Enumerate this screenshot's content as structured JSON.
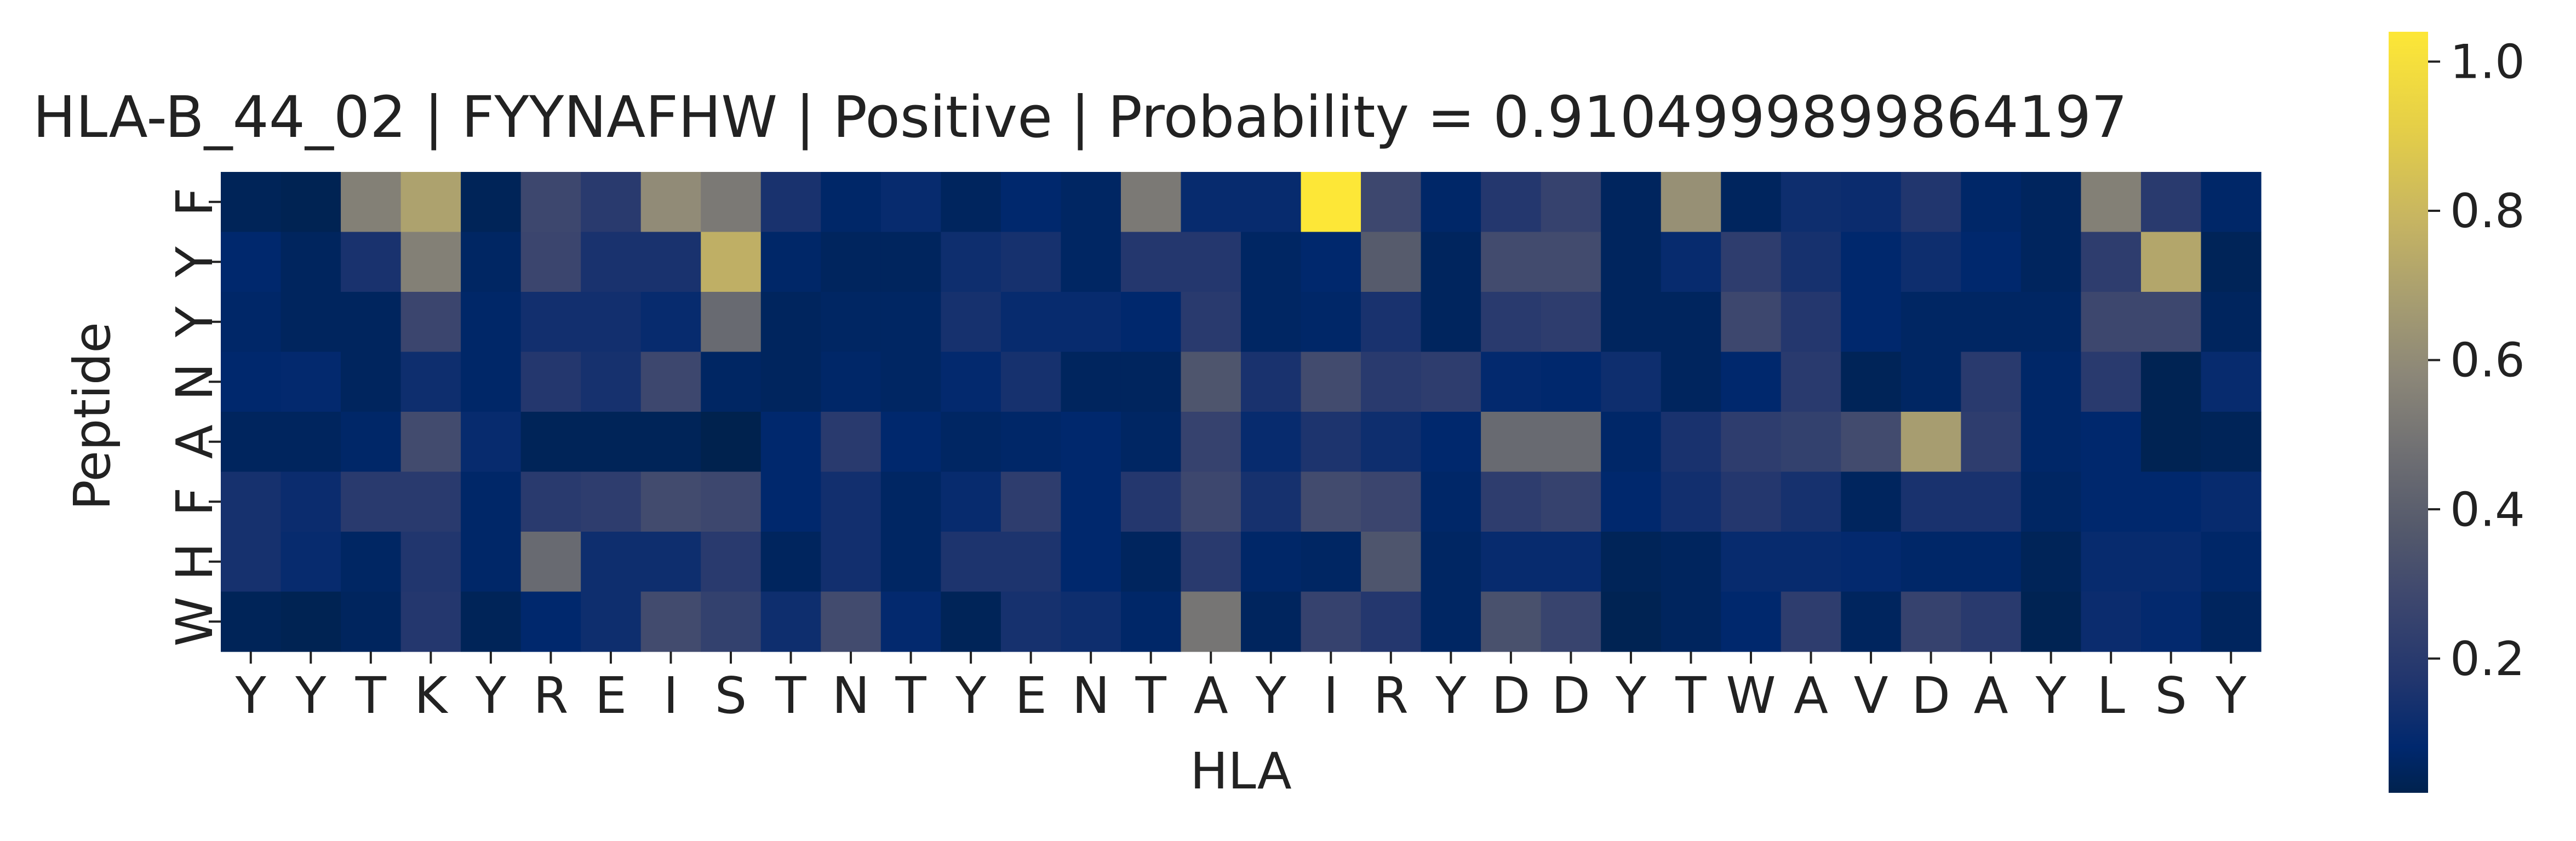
{
  "chart_data": {
    "type": "heatmap",
    "title": "HLA-B_44_02 | FYYNAFHW | Positive | Probability = 0.9104999899864197",
    "xlabel": "HLA",
    "ylabel": "Peptide",
    "x_categories": [
      "Y",
      "Y",
      "T",
      "K",
      "Y",
      "R",
      "E",
      "I",
      "S",
      "T",
      "N",
      "T",
      "Y",
      "E",
      "N",
      "T",
      "A",
      "Y",
      "I",
      "R",
      "Y",
      "D",
      "D",
      "Y",
      "T",
      "W",
      "A",
      "V",
      "D",
      "A",
      "Y",
      "L",
      "S",
      "Y"
    ],
    "y_categories": [
      "F",
      "Y",
      "Y",
      "N",
      "A",
      "F",
      "H",
      "W"
    ],
    "colormap": "cividis",
    "colorbar": {
      "ticks": [
        0.2,
        0.4,
        0.6,
        0.8,
        1.0
      ],
      "tick_labels": [
        "0.2",
        "0.4",
        "0.6",
        "0.8",
        "1.0"
      ],
      "vmin": 0.02,
      "vmax": 1.04
    },
    "grid": false,
    "values": [
      [
        0.04,
        0.03,
        0.55,
        0.7,
        0.04,
        0.28,
        0.2,
        0.6,
        0.52,
        0.15,
        0.07,
        0.1,
        0.05,
        0.08,
        0.06,
        0.52,
        0.1,
        0.1,
        1.04,
        0.28,
        0.07,
        0.18,
        0.25,
        0.05,
        0.62,
        0.05,
        0.12,
        0.11,
        0.17,
        0.07,
        0.05,
        0.55,
        0.2,
        0.07
      ],
      [
        0.08,
        0.05,
        0.15,
        0.55,
        0.06,
        0.27,
        0.15,
        0.15,
        0.76,
        0.07,
        0.05,
        0.05,
        0.12,
        0.14,
        0.06,
        0.18,
        0.18,
        0.06,
        0.08,
        0.38,
        0.05,
        0.3,
        0.3,
        0.05,
        0.1,
        0.22,
        0.14,
        0.08,
        0.12,
        0.08,
        0.05,
        0.22,
        0.72,
        0.04
      ],
      [
        0.07,
        0.05,
        0.05,
        0.27,
        0.07,
        0.13,
        0.13,
        0.1,
        0.45,
        0.05,
        0.06,
        0.06,
        0.14,
        0.1,
        0.1,
        0.08,
        0.2,
        0.06,
        0.07,
        0.15,
        0.05,
        0.2,
        0.22,
        0.05,
        0.05,
        0.28,
        0.18,
        0.08,
        0.06,
        0.06,
        0.06,
        0.28,
        0.28,
        0.05
      ],
      [
        0.08,
        0.09,
        0.05,
        0.12,
        0.07,
        0.18,
        0.14,
        0.28,
        0.06,
        0.05,
        0.07,
        0.06,
        0.09,
        0.14,
        0.05,
        0.05,
        0.35,
        0.15,
        0.3,
        0.2,
        0.22,
        0.09,
        0.08,
        0.12,
        0.05,
        0.08,
        0.2,
        0.04,
        0.06,
        0.2,
        0.07,
        0.2,
        0.03,
        0.1
      ],
      [
        0.05,
        0.05,
        0.07,
        0.3,
        0.1,
        0.04,
        0.04,
        0.04,
        0.02,
        0.08,
        0.2,
        0.08,
        0.06,
        0.07,
        0.08,
        0.06,
        0.25,
        0.1,
        0.16,
        0.12,
        0.08,
        0.45,
        0.45,
        0.07,
        0.15,
        0.22,
        0.24,
        0.3,
        0.68,
        0.22,
        0.07,
        0.08,
        0.03,
        0.04
      ],
      [
        0.14,
        0.11,
        0.2,
        0.2,
        0.07,
        0.2,
        0.22,
        0.3,
        0.28,
        0.08,
        0.13,
        0.06,
        0.1,
        0.22,
        0.08,
        0.18,
        0.28,
        0.14,
        0.3,
        0.27,
        0.07,
        0.22,
        0.25,
        0.08,
        0.13,
        0.18,
        0.14,
        0.05,
        0.15,
        0.15,
        0.06,
        0.08,
        0.08,
        0.1
      ],
      [
        0.14,
        0.1,
        0.06,
        0.17,
        0.07,
        0.45,
        0.12,
        0.12,
        0.2,
        0.05,
        0.13,
        0.06,
        0.16,
        0.16,
        0.08,
        0.05,
        0.2,
        0.07,
        0.06,
        0.35,
        0.06,
        0.1,
        0.1,
        0.04,
        0.05,
        0.1,
        0.1,
        0.09,
        0.07,
        0.07,
        0.04,
        0.1,
        0.1,
        0.07
      ],
      [
        0.04,
        0.03,
        0.05,
        0.18,
        0.04,
        0.08,
        0.12,
        0.3,
        0.24,
        0.12,
        0.3,
        0.09,
        0.04,
        0.14,
        0.12,
        0.07,
        0.5,
        0.05,
        0.25,
        0.18,
        0.06,
        0.33,
        0.26,
        0.03,
        0.05,
        0.08,
        0.22,
        0.05,
        0.25,
        0.2,
        0.03,
        0.11,
        0.09,
        0.05
      ]
    ]
  }
}
